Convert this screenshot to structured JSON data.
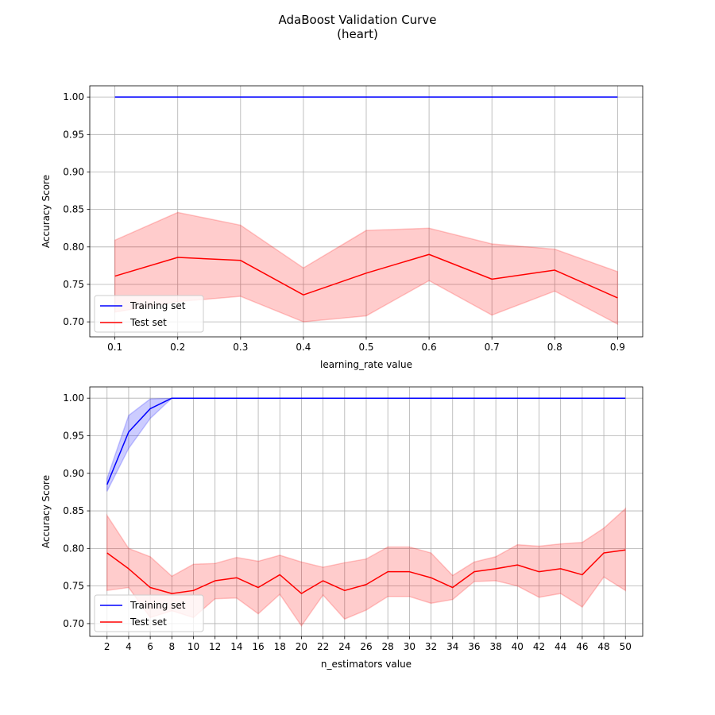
{
  "figure": {
    "title_line1": "AdaBoost Validation Curve",
    "title_line2": "(heart)"
  },
  "chart_data": [
    {
      "type": "line",
      "xlabel": "learning_rate value",
      "ylabel": "Accuracy Score",
      "grid": true,
      "legend_placement": "lower-left",
      "x": [
        0.1,
        0.2,
        0.3,
        0.4,
        0.5,
        0.6,
        0.7,
        0.8,
        0.9
      ],
      "xticks": [
        0.1,
        0.2,
        0.3,
        0.4,
        0.5,
        0.6,
        0.7,
        0.8,
        0.9
      ],
      "xtick_labels": [
        "0.1",
        "0.2",
        "0.3",
        "0.4",
        "0.5",
        "0.6",
        "0.7",
        "0.8",
        "0.9"
      ],
      "xlim": [
        0.06,
        0.94
      ],
      "ylim": [
        0.68,
        1.015
      ],
      "yticks": [
        0.7,
        0.75,
        0.8,
        0.85,
        0.9,
        0.95,
        1.0
      ],
      "ytick_labels": [
        "0.70",
        "0.75",
        "0.80",
        "0.85",
        "0.90",
        "0.95",
        "1.00"
      ],
      "series": [
        {
          "name": "Training set",
          "color": "#0000ff",
          "band_color": "#0000ff",
          "values": [
            1.0,
            1.0,
            1.0,
            1.0,
            1.0,
            1.0,
            1.0,
            1.0,
            1.0
          ],
          "band_low": [
            1.0,
            1.0,
            1.0,
            1.0,
            1.0,
            1.0,
            1.0,
            1.0,
            1.0
          ],
          "band_high": [
            1.0,
            1.0,
            1.0,
            1.0,
            1.0,
            1.0,
            1.0,
            1.0,
            1.0
          ]
        },
        {
          "name": "Test set",
          "color": "#ff0000",
          "band_color": "#ff0000",
          "values": [
            0.761,
            0.786,
            0.782,
            0.736,
            0.765,
            0.79,
            0.757,
            0.769,
            0.732
          ],
          "band_low": [
            0.713,
            0.727,
            0.734,
            0.7,
            0.708,
            0.755,
            0.709,
            0.741,
            0.697
          ],
          "band_high": [
            0.809,
            0.846,
            0.829,
            0.772,
            0.822,
            0.825,
            0.804,
            0.797,
            0.767
          ]
        }
      ]
    },
    {
      "type": "line",
      "xlabel": "n_estimators value",
      "ylabel": "Accuracy Score",
      "grid": true,
      "legend_placement": "lower-left",
      "x": [
        2,
        4,
        6,
        8,
        10,
        12,
        14,
        16,
        18,
        20,
        22,
        24,
        26,
        28,
        30,
        32,
        34,
        36,
        38,
        40,
        42,
        44,
        46,
        48,
        50
      ],
      "xticks": [
        2,
        4,
        6,
        8,
        10,
        12,
        14,
        16,
        18,
        20,
        22,
        24,
        26,
        28,
        30,
        32,
        34,
        36,
        38,
        40,
        42,
        44,
        46,
        48,
        50
      ],
      "xtick_labels": [
        "2",
        "4",
        "6",
        "8",
        "10",
        "12",
        "14",
        "16",
        "18",
        "20",
        "22",
        "24",
        "26",
        "28",
        "30",
        "32",
        "34",
        "36",
        "38",
        "40",
        "42",
        "44",
        "46",
        "48",
        "50"
      ],
      "xlim": [
        0.4,
        51.6
      ],
      "ylim": [
        0.683,
        1.015
      ],
      "yticks": [
        0.7,
        0.75,
        0.8,
        0.85,
        0.9,
        0.95,
        1.0
      ],
      "ytick_labels": [
        "0.70",
        "0.75",
        "0.80",
        "0.85",
        "0.90",
        "0.95",
        "1.00"
      ],
      "series": [
        {
          "name": "Training set",
          "color": "#0000ff",
          "band_color": "#0000ff",
          "values": [
            0.885,
            0.955,
            0.986,
            1.0,
            1.0,
            1.0,
            1.0,
            1.0,
            1.0,
            1.0,
            1.0,
            1.0,
            1.0,
            1.0,
            1.0,
            1.0,
            1.0,
            1.0,
            1.0,
            1.0,
            1.0,
            1.0,
            1.0,
            1.0,
            1.0
          ],
          "band_low": [
            0.876,
            0.933,
            0.973,
            1.0,
            1.0,
            1.0,
            1.0,
            1.0,
            1.0,
            1.0,
            1.0,
            1.0,
            1.0,
            1.0,
            1.0,
            1.0,
            1.0,
            1.0,
            1.0,
            1.0,
            1.0,
            1.0,
            1.0,
            1.0,
            1.0
          ],
          "band_high": [
            0.893,
            0.977,
            0.999,
            1.0,
            1.0,
            1.0,
            1.0,
            1.0,
            1.0,
            1.0,
            1.0,
            1.0,
            1.0,
            1.0,
            1.0,
            1.0,
            1.0,
            1.0,
            1.0,
            1.0,
            1.0,
            1.0,
            1.0,
            1.0,
            1.0
          ]
        },
        {
          "name": "Test set",
          "color": "#ff0000",
          "band_color": "#ff0000",
          "values": [
            0.794,
            0.773,
            0.748,
            0.74,
            0.744,
            0.757,
            0.761,
            0.748,
            0.765,
            0.74,
            0.757,
            0.744,
            0.752,
            0.769,
            0.769,
            0.761,
            0.748,
            0.769,
            0.773,
            0.778,
            0.769,
            0.773,
            0.765,
            0.794,
            0.798
          ],
          "band_low": [
            0.744,
            0.748,
            0.708,
            0.717,
            0.708,
            0.733,
            0.734,
            0.713,
            0.739,
            0.697,
            0.738,
            0.706,
            0.718,
            0.736,
            0.736,
            0.727,
            0.732,
            0.756,
            0.757,
            0.75,
            0.735,
            0.74,
            0.722,
            0.762,
            0.744
          ],
          "band_high": [
            0.844,
            0.8,
            0.789,
            0.763,
            0.779,
            0.78,
            0.788,
            0.783,
            0.791,
            0.782,
            0.775,
            0.781,
            0.786,
            0.802,
            0.802,
            0.794,
            0.764,
            0.782,
            0.789,
            0.805,
            0.803,
            0.806,
            0.808,
            0.827,
            0.853
          ]
        }
      ]
    }
  ]
}
